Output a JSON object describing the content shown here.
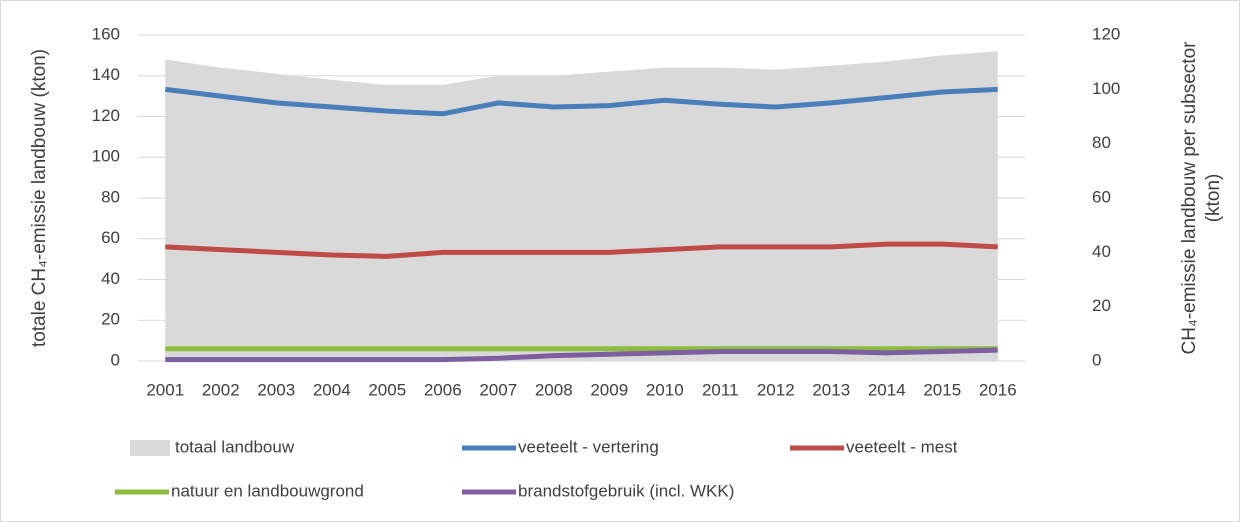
{
  "chart_data": {
    "type": "line",
    "categories": [
      "2001",
      "2002",
      "2003",
      "2004",
      "2005",
      "2006",
      "2007",
      "2008",
      "2009",
      "2010",
      "2011",
      "2012",
      "2013",
      "2014",
      "2015",
      "2016"
    ],
    "ylabel": "totale CH₄-emissie landbouw (kton)",
    "y2label": [
      "CH₄-emissie landbouw per subsector",
      "(kton)"
    ],
    "ylim": [
      0,
      160
    ],
    "yticks": [
      0,
      20,
      40,
      60,
      80,
      100,
      120,
      140,
      160
    ],
    "y2lim": [
      0,
      120
    ],
    "y2ticks": [
      0,
      20,
      40,
      60,
      80,
      100,
      120
    ],
    "grid": true,
    "series": [
      {
        "name": "totaal landbouw",
        "kind": "area",
        "color": "#d9d9d9",
        "values": [
          148,
          144,
          141,
          138,
          135.5,
          135.5,
          140,
          140,
          142,
          144,
          144,
          143,
          145,
          147,
          150,
          152
        ]
      },
      {
        "name": "veeteelt - vertering",
        "axis": "y2",
        "color": "#4a7ebb",
        "values": [
          100,
          97.5,
          95,
          93.5,
          92,
          91,
          95,
          93.5,
          94,
          96,
          94.5,
          93.5,
          95,
          97,
          99,
          100
        ]
      },
      {
        "name": "veeteelt - mest",
        "axis": "y2",
        "color": "#be4b48",
        "values": [
          42,
          41,
          40,
          39,
          38.5,
          40,
          40,
          40,
          40,
          41,
          42,
          42,
          42,
          43,
          43,
          42
        ]
      },
      {
        "name": "natuur en landbouwgrond",
        "axis": "y2",
        "color": "#8cbd3f",
        "values": [
          4.5,
          4.5,
          4.5,
          4.5,
          4.5,
          4.5,
          4.5,
          4.5,
          4.5,
          4.5,
          4.5,
          4.5,
          4.5,
          4.5,
          4.5,
          4.5
        ]
      },
      {
        "name": "brandstofgebruik (incl. WKK)",
        "axis": "y2",
        "color": "#7d5fa0",
        "values": [
          0.5,
          0.5,
          0.5,
          0.5,
          0.5,
          0.5,
          1,
          2,
          2.5,
          3,
          3.5,
          3.5,
          3.5,
          3,
          3.5,
          4
        ]
      }
    ]
  }
}
